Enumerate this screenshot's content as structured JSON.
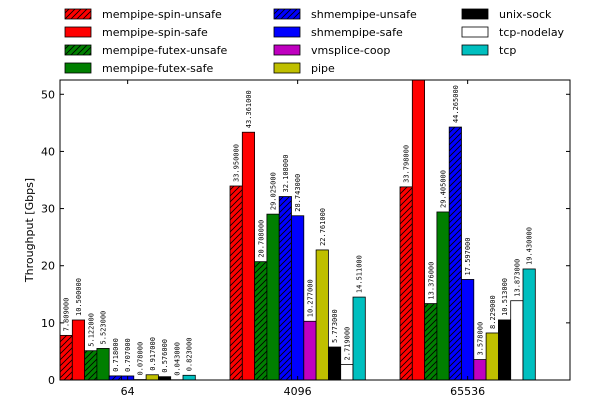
{
  "chart_data": {
    "type": "bar",
    "title": "",
    "xlabel": "",
    "ylabel": "Throughput [Gbps]",
    "ylim": [
      0,
      52.5
    ],
    "yticks": [
      0,
      10,
      20,
      30,
      40,
      50
    ],
    "grid": false,
    "legend_position": "top (above plot, 3 columns)",
    "categories": [
      "64",
      "4096",
      "65536"
    ],
    "series": [
      {
        "name": "mempipe-spin-unsafe",
        "color": "#ff0000",
        "hatch": true,
        "values": [
          7.809,
          33.95,
          33.798
        ],
        "labels": [
          "7.809000",
          "33.950000",
          "33.798000"
        ]
      },
      {
        "name": "mempipe-spin-safe",
        "color": "#ff0000",
        "hatch": false,
        "values": [
          10.5,
          43.361,
          null
        ],
        "labels": [
          "10.500000",
          "43.361000",
          ""
        ],
        "note": "65536 bar exceeds visible y-range; label clipped"
      },
      {
        "name": "mempipe-futex-unsafe",
        "color": "#007f00",
        "hatch": true,
        "values": [
          5.122,
          20.708,
          13.376
        ],
        "labels": [
          "5.122000",
          "20.708000",
          "13.376000"
        ]
      },
      {
        "name": "mempipe-futex-safe",
        "color": "#007f00",
        "hatch": false,
        "values": [
          5.523,
          29.025,
          29.405
        ],
        "labels": [
          "5.523000",
          "29.025000",
          "29.405000"
        ]
      },
      {
        "name": "shmempipe-unsafe",
        "color": "#0000ff",
        "hatch": true,
        "values": [
          0.718,
          32.108,
          44.265
        ],
        "labels": [
          "0.718000",
          "32.108000",
          "44.265000"
        ]
      },
      {
        "name": "shmempipe-safe",
        "color": "#0000ff",
        "hatch": false,
        "values": [
          0.707,
          28.743,
          17.597
        ],
        "labels": [
          "0.707000",
          "28.743000",
          "17.597000"
        ]
      },
      {
        "name": "vmsplice-coop",
        "color": "#bf00bf",
        "hatch": false,
        "values": [
          0.078,
          10.277,
          3.578
        ],
        "labels": [
          "0.078000",
          "10.277000",
          "3.578000"
        ]
      },
      {
        "name": "pipe",
        "color": "#bfbf00",
        "hatch": false,
        "values": [
          0.917,
          22.761,
          8.229
        ],
        "labels": [
          "0.917000",
          "22.761000",
          "8.229000"
        ]
      },
      {
        "name": "unix-sock",
        "color": "#000000",
        "hatch": false,
        "values": [
          0.576,
          5.773,
          10.513
        ],
        "labels": [
          "0.576000",
          "5.773000",
          "10.513000"
        ]
      },
      {
        "name": "tcp-nodelay",
        "color": "#ffffff",
        "hatch": false,
        "values": [
          0.043,
          2.719,
          13.873
        ],
        "labels": [
          "0.043000",
          "2.719000",
          "13.873000"
        ]
      },
      {
        "name": "tcp",
        "color": "#00bfbf",
        "hatch": false,
        "values": [
          0.823,
          14.511,
          19.43
        ],
        "labels": [
          "0.823000",
          "14.511000",
          "19.430000"
        ]
      }
    ]
  }
}
